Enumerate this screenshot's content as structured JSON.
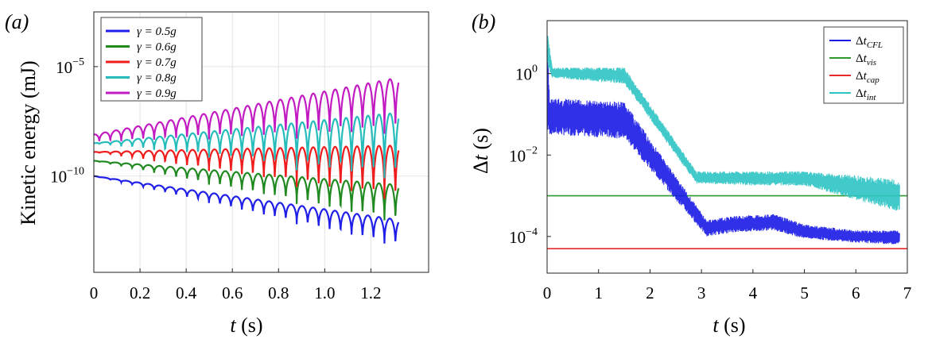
{
  "chart_data": [
    {
      "id": "a",
      "panel_label": "(a)",
      "type": "line",
      "title": "",
      "xlabel": "t  (s)",
      "ylabel": "Kinetic energy (mJ)",
      "xlim": [
        0,
        1.45
      ],
      "xticks": [
        0,
        0.2,
        0.4,
        0.6,
        0.8,
        1.0,
        1.2
      ],
      "xtick_labels": [
        "0",
        "0.2",
        "0.4",
        "0.6",
        "0.8",
        "1.0",
        "1.2"
      ],
      "ylog": true,
      "ylim_log10": [
        -14.4,
        -2.5
      ],
      "yticks_log10": [
        -5,
        -10
      ],
      "ytick_labels": [
        {
          "base": "10",
          "exp": "−5"
        },
        {
          "base": "10",
          "exp": "−10"
        }
      ],
      "grid": true,
      "legend_position": "top-left",
      "oscillation_period_s": 0.0475,
      "series": [
        {
          "name": "γ = 0.5g",
          "legend_label": "γ = 0.5g",
          "color": "#1f1fe8",
          "start_log10": -10.0,
          "end_log10": -12.0,
          "min_at_start_log10": -10.0,
          "min_at_end_log10": -13.4
        },
        {
          "name": "γ = 0.6g",
          "legend_label": "γ = 0.6g",
          "color": "#208a20",
          "start_log10": -9.3,
          "end_log10": -10.4,
          "min_at_start_log10": -9.3,
          "min_at_end_log10": -12.4
        },
        {
          "name": "γ = 0.7g",
          "legend_label": "γ = 0.7g",
          "color": "#ee1c1c",
          "start_log10": -8.9,
          "end_log10": -8.6,
          "min_at_start_log10": -8.9,
          "min_at_end_log10": -11.5
        },
        {
          "name": "γ = 0.8g",
          "legend_label": "γ = 0.8g",
          "color": "#27bcbc",
          "start_log10": -8.5,
          "end_log10": -7.1,
          "min_at_start_log10": -8.5,
          "min_at_end_log10": -10.6
        },
        {
          "name": "γ = 0.9g",
          "legend_label": "γ = 0.9g",
          "color": "#c21bc2",
          "start_log10": -8.1,
          "end_log10": -5.5,
          "min_at_start_log10": -8.5,
          "min_at_end_log10": -8.4
        }
      ]
    },
    {
      "id": "b",
      "panel_label": "(b)",
      "type": "line",
      "title": "",
      "xlabel": "t  (s)",
      "ylabel": "Δt  (s)",
      "xlim": [
        0,
        7
      ],
      "xticks": [
        0,
        1,
        2,
        3,
        4,
        5,
        6,
        7
      ],
      "xtick_labels": [
        "0",
        "1",
        "2",
        "3",
        "4",
        "5",
        "6",
        "7"
      ],
      "ylog": true,
      "ylim_log10": [
        -4.9,
        1.3
      ],
      "yticks_log10": [
        0,
        -2,
        -4
      ],
      "ytick_labels": [
        {
          "base": "10",
          "exp": "0"
        },
        {
          "base": "10",
          "exp": "−2"
        },
        {
          "base": "10",
          "exp": "−4"
        }
      ],
      "grid": false,
      "legend_position": "top-right",
      "series": [
        {
          "name": "Δt_CFL",
          "legend_base": "Δt",
          "legend_sub": "CFL",
          "color": "#1a1ae6",
          "band_log10": [
            [
              0.0,
              0.9,
              -1.5
            ],
            [
              0.05,
              -0.6,
              -1.5
            ],
            [
              1.5,
              -0.7,
              -1.6
            ],
            [
              3.1,
              -3.6,
              -4.0
            ],
            [
              3.6,
              -3.5,
              -3.9
            ],
            [
              4.4,
              -3.45,
              -3.85
            ],
            [
              5.0,
              -3.7,
              -4.05
            ],
            [
              6.0,
              -3.85,
              -4.15
            ],
            [
              6.85,
              -3.85,
              -4.2
            ]
          ]
        },
        {
          "name": "Δt_vis",
          "legend_base": "Δt",
          "legend_sub": "vis",
          "color": "#2e9a2e",
          "constant_log10": -3.0
        },
        {
          "name": "Δt_cap",
          "legend_base": "Δt",
          "legend_sub": "cap",
          "color": "#e62a2a",
          "constant_log10": -4.3
        },
        {
          "name": "Δt_int",
          "legend_base": "Δt",
          "legend_sub": "int",
          "color": "#2ec4c4",
          "band_log10": [
            [
              0.0,
              1.1,
              0.2
            ],
            [
              0.1,
              0.15,
              -0.1
            ],
            [
              1.5,
              0.15,
              -0.25
            ],
            [
              2.9,
              -2.4,
              -2.7
            ],
            [
              4.0,
              -2.4,
              -2.75
            ],
            [
              5.0,
              -2.4,
              -2.75
            ],
            [
              6.0,
              -2.5,
              -3.1
            ],
            [
              6.85,
              -2.6,
              -3.4
            ]
          ]
        }
      ]
    }
  ]
}
